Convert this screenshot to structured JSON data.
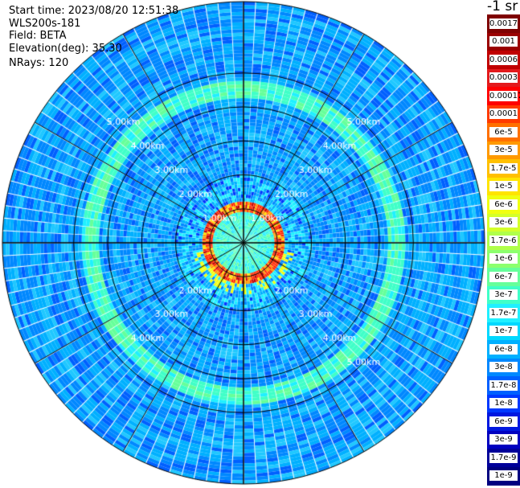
{
  "header": {
    "start_time": "Start time: 2023/08/20 12:51:38",
    "station": "WLS200s-181",
    "field": "Field: BETA",
    "elevation": "Elevation(deg): 35.30",
    "nrays": "NRays: 120"
  },
  "colorbar": {
    "unit_title": "-1 sr",
    "labels": [
      "0.0017",
      "0.001",
      "0.0006",
      "0.0003",
      "0.00017",
      "0.0001",
      "6e-5",
      "3e-5",
      "1.7e-5",
      "1e-5",
      "6e-6",
      "3e-6",
      "1.7e-6",
      "1e-6",
      "6e-7",
      "3e-7",
      "1.7e-7",
      "1e-7",
      "6e-8",
      "3e-8",
      "1.7e-8",
      "1e-8",
      "6e-9",
      "3e-9",
      "1.7e-9",
      "1e-9"
    ],
    "colors": [
      "#7f0000",
      "#9a0000",
      "#c00000",
      "#e31a1c",
      "#ff0000",
      "#ff3a00",
      "#ff7000",
      "#ff9a00",
      "#ffc000",
      "#ffe400",
      "#f0ff10",
      "#d4ff2a",
      "#b0ff4a",
      "#8cff6e",
      "#66ff9a",
      "#40ffc8",
      "#20f0ff",
      "#00d8ff",
      "#00b0ff",
      "#0088ff",
      "#0060ff",
      "#0038ff",
      "#0018e0",
      "#0000c0",
      "#00009a",
      "#000080"
    ]
  },
  "chart_data": {
    "type": "heatmap",
    "projection": "polar-ppi",
    "field": "BETA",
    "nrays": 120,
    "range_rings": [
      {
        "range_km": 1.0,
        "labels": [
          "1.00km",
          "1.00km"
        ]
      },
      {
        "range_km": 2.0,
        "labels": [
          "2.00km",
          "2.00km",
          "2.00km",
          "2.00km"
        ]
      },
      {
        "range_km": 3.0,
        "labels": [
          "3.00km",
          "3.00km",
          "3.00km",
          "3.00km"
        ]
      },
      {
        "range_km": 4.0,
        "labels": [
          "4.00km",
          "4.00km",
          "4.00km",
          "4.00km"
        ]
      },
      {
        "range_km": 5.0,
        "labels": [
          "5.00km",
          "5.00km",
          "5.00km"
        ]
      }
    ],
    "max_range_km": 7.1,
    "spoke_interval_deg": 30,
    "features": [
      {
        "name": "strong return ring",
        "range_km": [
          0.95,
          1.15
        ],
        "level": "1e-4 to 3e-4"
      },
      {
        "name": "near-range diffuse",
        "range_km": [
          0.0,
          2.0
        ],
        "level": "1.7e-7 to 1e-6"
      },
      {
        "name": "mid ring",
        "range_km": [
          4.3,
          4.7
        ],
        "level": "1.7e-7 to 6e-7"
      },
      {
        "name": "background",
        "range_km": [
          2.0,
          7.1
        ],
        "level": "3e-8 to 1.7e-7"
      }
    ]
  }
}
